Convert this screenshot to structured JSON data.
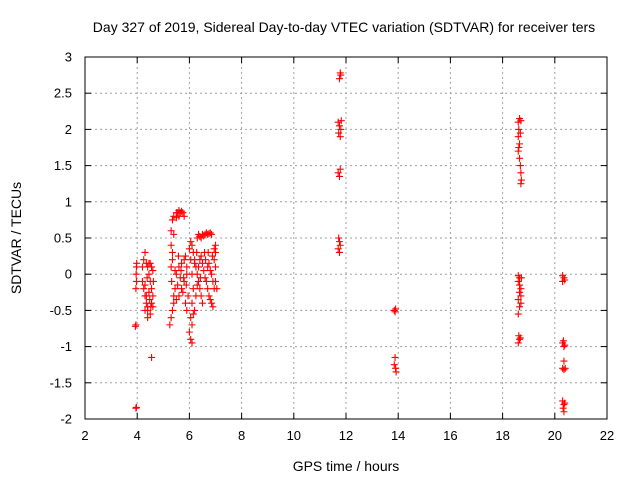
{
  "chart_data": {
    "type": "scatter",
    "title": "Day 327 of 2019, Sidereal Day-to-day VTEC variation (SDTVAR) for receiver ters",
    "xlabel": "GPS time / hours",
    "ylabel": "SDTVAR / TECUs",
    "xlim": [
      2,
      22
    ],
    "ylim": [
      -2,
      3
    ],
    "xticks": [
      2,
      4,
      6,
      8,
      10,
      12,
      14,
      16,
      18,
      20,
      22
    ],
    "yticks": [
      -2,
      -1.5,
      -1,
      -0.5,
      0,
      0.5,
      1,
      1.5,
      2,
      2.5,
      3
    ],
    "grid": true,
    "marker": "+",
    "color": "#ff0000",
    "series": [
      {
        "points": [
          [
            3.95,
            -1.85
          ],
          [
            3.97,
            -1.84
          ],
          [
            3.93,
            -0.72
          ],
          [
            3.95,
            -0.7
          ],
          [
            3.95,
            -0.2
          ],
          [
            3.97,
            -0.1
          ],
          [
            3.96,
            0.0
          ],
          [
            3.97,
            0.1
          ],
          [
            3.98,
            0.15
          ],
          [
            4.2,
            0.1
          ],
          [
            4.25,
            0.2
          ],
          [
            4.3,
            0.3
          ],
          [
            4.2,
            -0.1
          ],
          [
            4.25,
            -0.2
          ],
          [
            4.3,
            -0.3
          ],
          [
            4.35,
            -0.4
          ],
          [
            4.4,
            -0.5
          ],
          [
            4.3,
            -0.5
          ],
          [
            4.4,
            -0.45
          ],
          [
            4.35,
            0.15
          ],
          [
            4.4,
            0.1
          ],
          [
            4.45,
            0.15
          ],
          [
            4.5,
            0.15
          ],
          [
            4.55,
            0.1
          ],
          [
            4.45,
            0.0
          ],
          [
            4.5,
            -0.1
          ],
          [
            4.55,
            -0.2
          ],
          [
            4.6,
            -0.3
          ],
          [
            4.55,
            -0.4
          ],
          [
            4.6,
            -0.45
          ],
          [
            4.5,
            -0.55
          ],
          [
            4.4,
            -0.6
          ],
          [
            4.35,
            -0.3
          ],
          [
            4.3,
            -0.15
          ],
          [
            4.38,
            -0.05
          ],
          [
            4.45,
            -0.25
          ],
          [
            4.48,
            -0.35
          ],
          [
            4.52,
            -0.45
          ],
          [
            4.6,
            0.05
          ],
          [
            4.62,
            -0.1
          ],
          [
            4.55,
            -1.15
          ],
          [
            5.25,
            -0.7
          ],
          [
            5.3,
            -0.6
          ],
          [
            5.35,
            -0.5
          ],
          [
            5.4,
            -0.4
          ],
          [
            5.45,
            -0.2
          ],
          [
            5.5,
            0.0
          ],
          [
            5.35,
            0.2
          ],
          [
            5.3,
            0.4
          ],
          [
            5.3,
            0.6
          ],
          [
            5.35,
            0.75
          ],
          [
            5.4,
            0.8
          ],
          [
            5.5,
            0.85
          ],
          [
            5.55,
            0.85
          ],
          [
            5.6,
            0.88
          ],
          [
            5.65,
            0.85
          ],
          [
            5.7,
            0.87
          ],
          [
            5.75,
            0.85
          ],
          [
            5.8,
            0.8
          ],
          [
            5.6,
            0.8
          ],
          [
            5.5,
            0.78
          ],
          [
            5.4,
            0.55
          ],
          [
            5.35,
            0.3
          ],
          [
            5.3,
            0.1
          ],
          [
            5.32,
            -0.1
          ],
          [
            5.4,
            -0.3
          ],
          [
            5.5,
            -0.35
          ],
          [
            5.6,
            -0.3
          ],
          [
            5.7,
            -0.2
          ],
          [
            5.8,
            -0.1
          ],
          [
            5.9,
            0.0
          ],
          [
            5.6,
            0.1
          ],
          [
            5.7,
            0.15
          ],
          [
            5.8,
            0.2
          ],
          [
            5.85,
            0.25
          ],
          [
            5.9,
            0.1
          ],
          [
            5.65,
            -0.05
          ],
          [
            5.75,
            -0.25
          ],
          [
            5.85,
            -0.4
          ],
          [
            5.9,
            -0.5
          ],
          [
            5.95,
            -0.3
          ],
          [
            5.55,
            -0.15
          ],
          [
            5.45,
            0.05
          ],
          [
            5.58,
            0.25
          ],
          [
            5.68,
            0.05
          ],
          [
            5.78,
            -0.05
          ],
          [
            5.88,
            -0.15
          ],
          [
            6.0,
            -0.8
          ],
          [
            6.05,
            -0.9
          ],
          [
            6.1,
            -0.95
          ],
          [
            6.05,
            -0.6
          ],
          [
            6.1,
            -0.4
          ],
          [
            6.15,
            -0.2
          ],
          [
            6.1,
            0.0
          ],
          [
            6.05,
            0.2
          ],
          [
            6.0,
            0.35
          ],
          [
            6.05,
            0.45
          ],
          [
            6.1,
            0.4
          ],
          [
            6.15,
            0.3
          ],
          [
            6.2,
            0.2
          ],
          [
            6.25,
            0.1
          ],
          [
            6.3,
            0.0
          ],
          [
            6.35,
            -0.1
          ],
          [
            6.4,
            -0.2
          ],
          [
            6.45,
            -0.3
          ],
          [
            6.5,
            -0.4
          ],
          [
            6.3,
            0.5
          ],
          [
            6.35,
            0.55
          ],
          [
            6.4,
            0.52
          ],
          [
            6.45,
            0.5
          ],
          [
            6.5,
            0.55
          ],
          [
            6.55,
            0.53
          ],
          [
            6.6,
            0.55
          ],
          [
            6.65,
            0.57
          ],
          [
            6.7,
            0.55
          ],
          [
            6.75,
            0.56
          ],
          [
            6.8,
            0.57
          ],
          [
            6.85,
            0.55
          ],
          [
            6.2,
            -0.5
          ],
          [
            6.25,
            -0.3
          ],
          [
            6.3,
            -0.15
          ],
          [
            6.35,
            0.1
          ],
          [
            6.4,
            0.2
          ],
          [
            6.45,
            0.25
          ],
          [
            6.5,
            0.15
          ],
          [
            6.55,
            0.05
          ],
          [
            6.6,
            -0.05
          ],
          [
            6.65,
            -0.1
          ],
          [
            6.7,
            -0.2
          ],
          [
            6.75,
            -0.3
          ],
          [
            6.8,
            -0.35
          ],
          [
            6.85,
            -0.4
          ],
          [
            6.9,
            -0.45
          ],
          [
            6.7,
            0.1
          ],
          [
            6.75,
            0.15
          ],
          [
            6.8,
            0.05
          ],
          [
            6.85,
            0.0
          ],
          [
            6.9,
            -0.1
          ],
          [
            6.95,
            -0.2
          ],
          [
            6.95,
            0.2
          ],
          [
            7.0,
            0.3
          ],
          [
            7.0,
            0.1
          ],
          [
            7.0,
            -0.1
          ],
          [
            7.05,
            -0.2
          ],
          [
            6.95,
            0.35
          ],
          [
            7.0,
            0.4
          ],
          [
            6.1,
            -0.7
          ],
          [
            6.15,
            -0.55
          ],
          [
            6.2,
            0.15
          ],
          [
            6.28,
            0.3
          ],
          [
            6.42,
            -0.05
          ],
          [
            6.58,
            0.3
          ],
          [
            6.62,
            0.2
          ],
          [
            6.72,
            0.3
          ],
          [
            6.88,
            0.25
          ]
        ]
      },
      {
        "points": [
          [
            11.75,
            2.7
          ],
          [
            11.8,
            2.75
          ],
          [
            11.78,
            2.78
          ],
          [
            11.7,
            2.1
          ],
          [
            11.75,
            2.05
          ],
          [
            11.8,
            2.0
          ],
          [
            11.72,
            1.95
          ],
          [
            11.78,
            1.9
          ],
          [
            11.82,
            2.12
          ],
          [
            11.7,
            1.4
          ],
          [
            11.75,
            1.35
          ],
          [
            11.78,
            1.45
          ],
          [
            11.72,
            0.5
          ],
          [
            11.75,
            0.45
          ],
          [
            11.78,
            0.4
          ],
          [
            11.7,
            0.35
          ],
          [
            11.75,
            0.3
          ]
        ]
      },
      {
        "points": [
          [
            13.85,
            -0.5
          ],
          [
            13.88,
            -0.52
          ],
          [
            13.9,
            -0.48
          ],
          [
            13.85,
            -1.25
          ],
          [
            13.9,
            -1.3
          ],
          [
            13.92,
            -1.35
          ],
          [
            13.88,
            -1.15
          ]
        ]
      },
      {
        "points": [
          [
            18.6,
            2.1
          ],
          [
            18.65,
            2.15
          ],
          [
            18.7,
            2.12
          ],
          [
            18.62,
            2.0
          ],
          [
            18.6,
            1.9
          ],
          [
            18.65,
            1.8
          ],
          [
            18.6,
            1.7
          ],
          [
            18.65,
            1.6
          ],
          [
            18.68,
            1.5
          ],
          [
            18.7,
            1.4
          ],
          [
            18.72,
            1.3
          ],
          [
            18.7,
            1.25
          ],
          [
            18.62,
            1.75
          ],
          [
            18.68,
            1.95
          ],
          [
            18.6,
            -0.02
          ],
          [
            18.65,
            -0.05
          ],
          [
            18.6,
            -0.1
          ],
          [
            18.65,
            -0.15
          ],
          [
            18.7,
            -0.2
          ],
          [
            18.65,
            -0.25
          ],
          [
            18.7,
            -0.3
          ],
          [
            18.6,
            -0.35
          ],
          [
            18.65,
            -0.45
          ],
          [
            18.6,
            -0.55
          ],
          [
            18.62,
            -0.85
          ],
          [
            18.65,
            -0.9
          ],
          [
            18.6,
            -0.95
          ],
          [
            18.68,
            -0.88
          ],
          [
            18.72,
            -0.05
          ],
          [
            18.7,
            -0.4
          ]
        ]
      },
      {
        "points": [
          [
            20.3,
            -0.02
          ],
          [
            20.35,
            -0.05
          ],
          [
            20.3,
            -0.1
          ],
          [
            20.38,
            -0.08
          ],
          [
            20.3,
            -0.95
          ],
          [
            20.35,
            -1.0
          ],
          [
            20.38,
            -0.98
          ],
          [
            20.3,
            -1.3
          ],
          [
            20.35,
            -1.32
          ],
          [
            20.4,
            -1.3
          ],
          [
            20.35,
            -1.2
          ],
          [
            20.3,
            -1.75
          ],
          [
            20.35,
            -1.8
          ],
          [
            20.32,
            -1.85
          ],
          [
            20.35,
            -1.9
          ],
          [
            20.38,
            -1.78
          ],
          [
            20.33,
            -0.92
          ]
        ]
      }
    ]
  }
}
